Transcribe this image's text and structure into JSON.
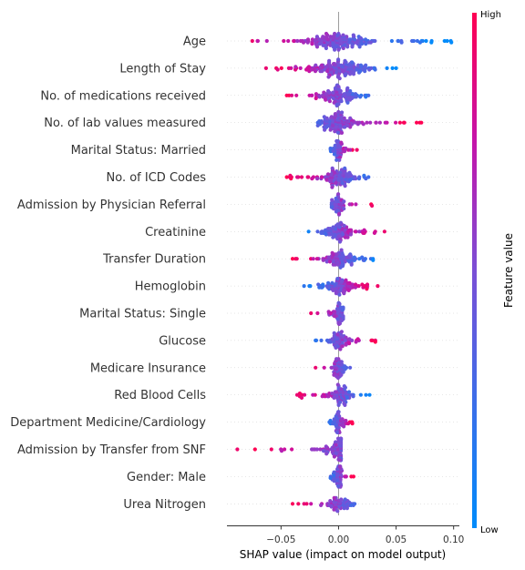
{
  "chart_data": {
    "type": "scatter",
    "subtype": "shap_beeswarm",
    "xlabel": "SHAP value (impact on model output)",
    "xlim": [
      -0.097,
      0.105
    ],
    "xticks": [
      "−0.05",
      "0.00",
      "0.05",
      "0.10"
    ],
    "xtick_values": [
      -0.05,
      0.0,
      0.05,
      0.1
    ],
    "colorbar": {
      "label": "Feature value",
      "high": "High",
      "low": "Low"
    },
    "colors": {
      "low": "#008bfb",
      "high": "#ff0052",
      "zero_line": "#999999"
    },
    "features": [
      {
        "name": "Age",
        "min": -0.075,
        "max": 0.098,
        "low_side": "right",
        "high_extent": -0.075,
        "low_extent": 0.098,
        "spread": 0.022
      },
      {
        "name": "Length of Stay",
        "min": -0.063,
        "max": 0.05,
        "low_side": "right",
        "high_extent": -0.063,
        "low_extent": 0.05,
        "spread": 0.02
      },
      {
        "name": "No. of medications received",
        "min": -0.045,
        "max": 0.026,
        "low_side": "right",
        "high_extent": -0.045,
        "low_extent": 0.026,
        "spread": 0.014
      },
      {
        "name": "No. of lab values measured",
        "min": -0.018,
        "max": 0.072,
        "low_side": "left",
        "high_extent": 0.072,
        "low_extent": -0.018,
        "spread": 0.016
      },
      {
        "name": "Marital Status: Married",
        "min": -0.007,
        "max": 0.016,
        "low_side": "left",
        "high_extent": 0.016,
        "low_extent": -0.007,
        "spread": 0.005
      },
      {
        "name": "No. of ICD Codes",
        "min": -0.045,
        "max": 0.026,
        "low_side": "right",
        "high_extent": -0.045,
        "low_extent": 0.026,
        "spread": 0.014
      },
      {
        "name": "Admission by Physician Referral",
        "min": -0.006,
        "max": 0.029,
        "low_side": "left",
        "high_extent": 0.029,
        "low_extent": -0.006,
        "spread": 0.006
      },
      {
        "name": "Creatinine",
        "min": -0.026,
        "max": 0.04,
        "low_side": "left",
        "high_extent": 0.04,
        "low_extent": -0.026,
        "spread": 0.012
      },
      {
        "name": "Transfer Duration",
        "min": -0.04,
        "max": 0.03,
        "low_side": "right",
        "high_extent": -0.04,
        "low_extent": 0.03,
        "spread": 0.012
      },
      {
        "name": "Hemoglobin",
        "min": -0.03,
        "max": 0.034,
        "low_side": "left",
        "high_extent": 0.034,
        "low_extent": -0.03,
        "spread": 0.012
      },
      {
        "name": "Marital Status: Single",
        "min": -0.024,
        "max": 0.004,
        "low_side": "right",
        "high_extent": -0.024,
        "low_extent": 0.004,
        "spread": 0.005
      },
      {
        "name": "Glucose",
        "min": -0.02,
        "max": 0.032,
        "low_side": "left",
        "high_extent": 0.032,
        "low_extent": -0.02,
        "spread": 0.009
      },
      {
        "name": "Medicare Insurance",
        "min": -0.02,
        "max": 0.01,
        "low_side": "right",
        "high_extent": -0.02,
        "low_extent": 0.01,
        "spread": 0.005
      },
      {
        "name": "Red Blood Cells",
        "min": -0.036,
        "max": 0.027,
        "low_side": "right",
        "high_extent": -0.036,
        "low_extent": 0.027,
        "spread": 0.01
      },
      {
        "name": "Department Medicine/Cardiology",
        "min": -0.008,
        "max": 0.012,
        "low_side": "left",
        "high_extent": 0.012,
        "low_extent": -0.008,
        "spread": 0.004
      },
      {
        "name": "Admission by Transfer from SNF",
        "min": -0.088,
        "max": 0.002,
        "low_side": "right",
        "high_extent": -0.088,
        "low_extent": 0.002,
        "spread": 0.012
      },
      {
        "name": "Gender: Male",
        "min": -0.007,
        "max": 0.013,
        "low_side": "left",
        "high_extent": 0.013,
        "low_extent": -0.007,
        "spread": 0.004
      },
      {
        "name": "Urea Nitrogen",
        "min": -0.04,
        "max": 0.014,
        "low_side": "right",
        "high_extent": -0.04,
        "low_extent": 0.014,
        "spread": 0.008
      }
    ]
  }
}
